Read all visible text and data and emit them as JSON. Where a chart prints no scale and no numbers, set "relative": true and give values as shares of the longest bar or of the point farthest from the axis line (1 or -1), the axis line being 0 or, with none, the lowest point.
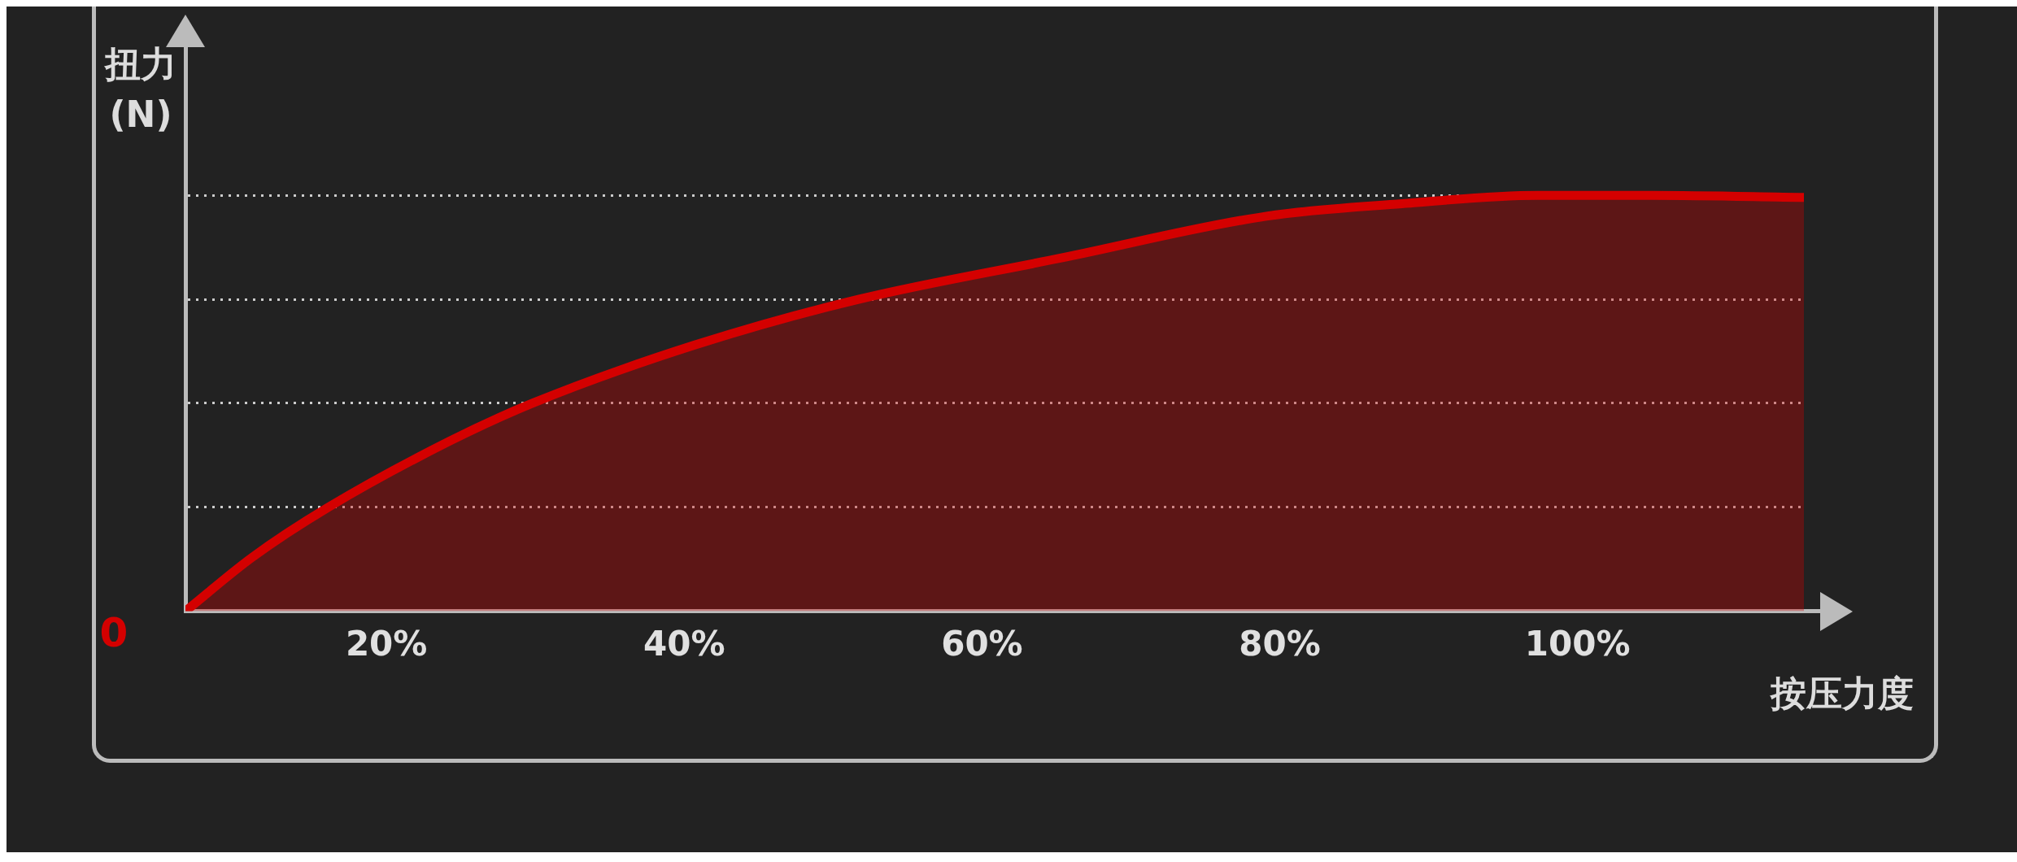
{
  "chart_data": {
    "type": "area",
    "relative": true,
    "xlabel": "按压力度",
    "ylabel": "扭力 (N)",
    "x": [
      6.5,
      11,
      16.1,
      24.3,
      29.8,
      40.7,
      51.7,
      65.4,
      79.1,
      88.2,
      97.3,
      105,
      115.2
    ],
    "series": [
      {
        "color": "#d40000",
        "values": [
          0,
          0.13,
          0.25,
          0.41,
          0.5,
          0.64,
          0.75,
          0.85,
          0.95,
          0.98,
          1,
          1,
          0.995
        ]
      }
    ],
    "xlim": [
      6.5,
      115.2
    ],
    "xticks": [
      {
        "value": 20,
        "label": "20%"
      },
      {
        "value": 40,
        "label": "40%"
      },
      {
        "value": 60,
        "label": "60%"
      },
      {
        "value": 80,
        "label": "80%"
      },
      {
        "value": 100,
        "label": "100%"
      }
    ],
    "annotations": [
      "0"
    ],
    "grid": "y",
    "legend": false,
    "marker": "none",
    "line_style": "solid"
  }
}
